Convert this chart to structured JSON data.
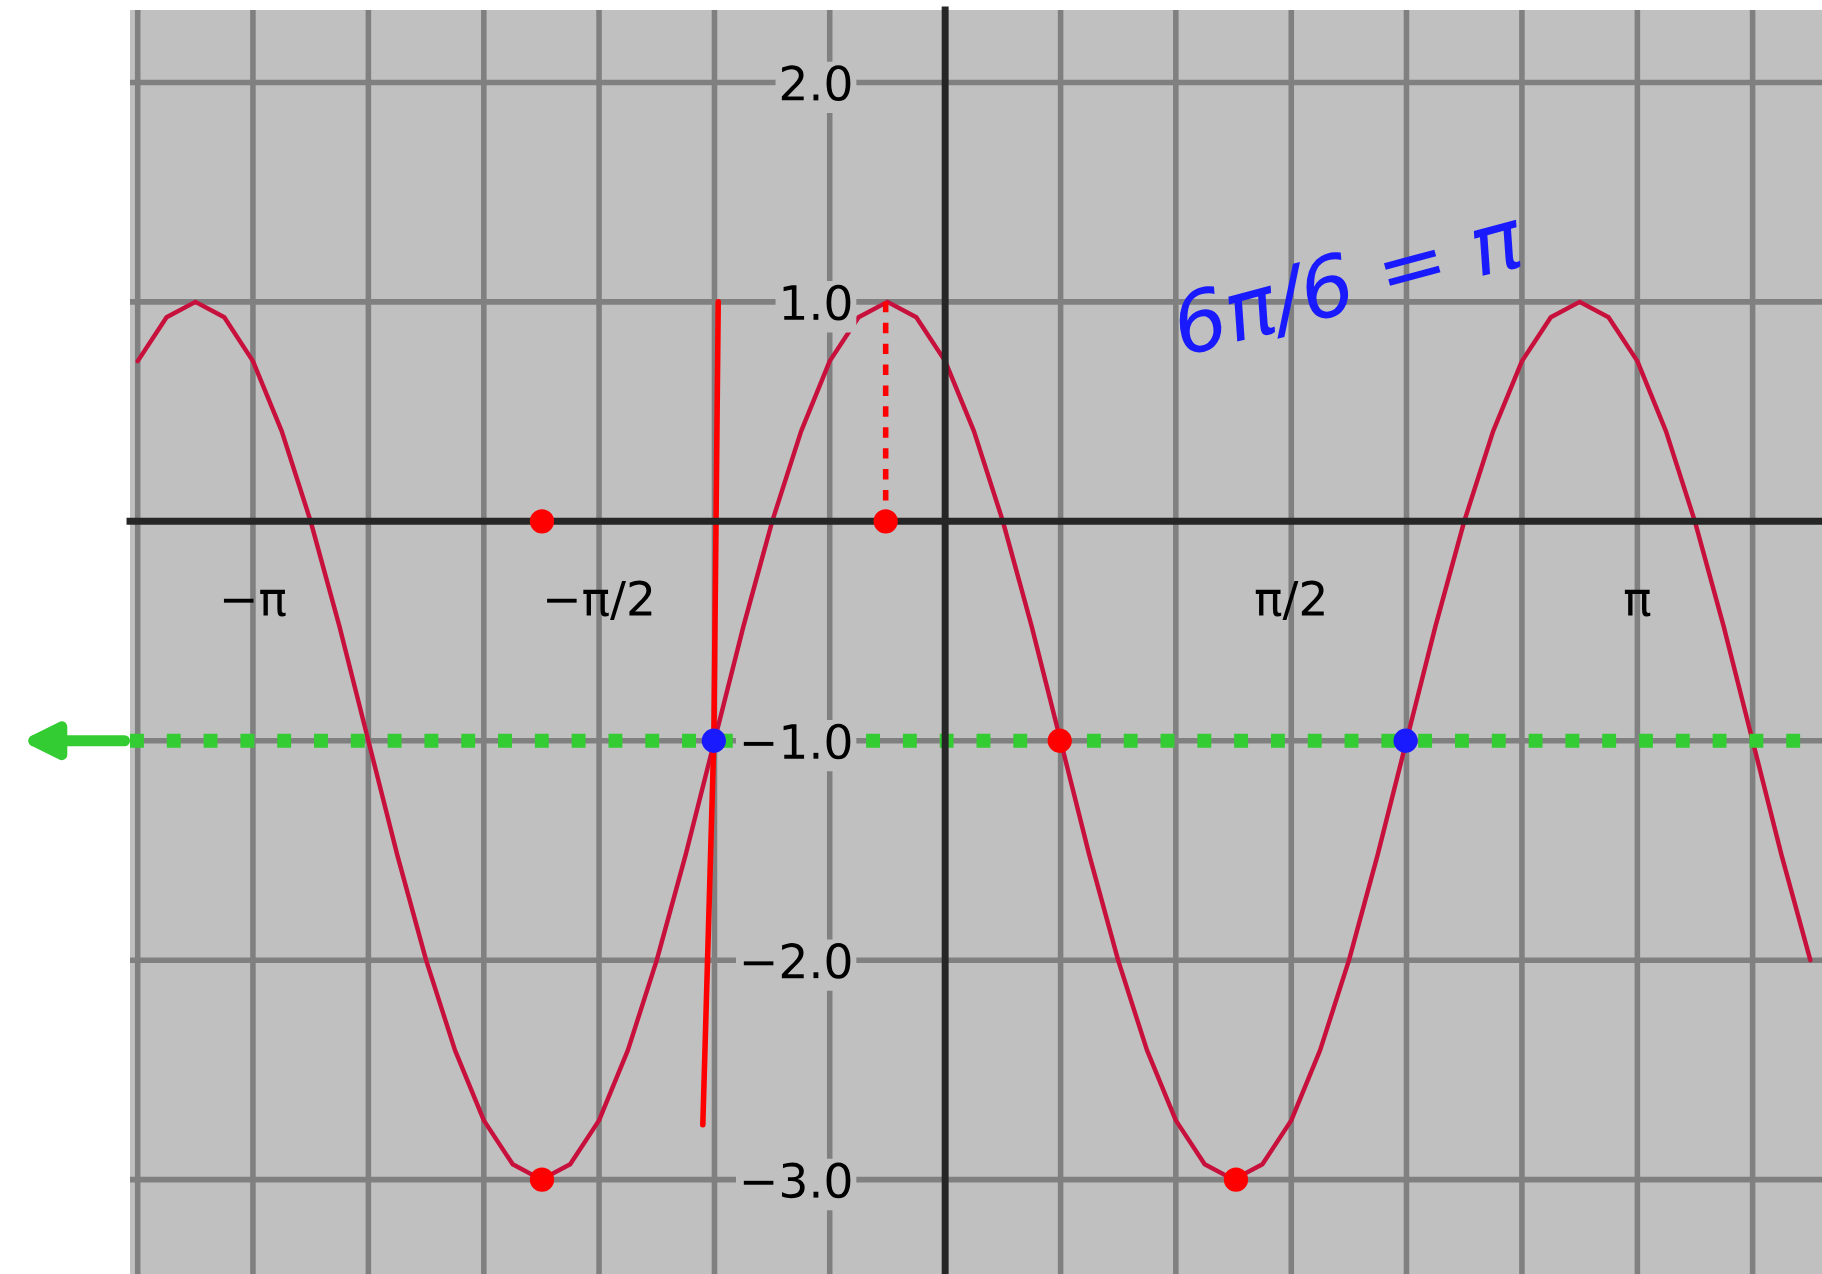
{
  "chart_data": {
    "type": "line",
    "xlim": [
      -3.7,
      3.98
    ],
    "ylim": [
      -3.43,
      2.33
    ],
    "xticks": [
      {
        "value": -3.665,
        "label": null
      },
      {
        "value": -3.142,
        "label": "−π"
      },
      {
        "value": -2.618,
        "label": null
      },
      {
        "value": -2.094,
        "label": null
      },
      {
        "value": -1.571,
        "label": "−π/2"
      },
      {
        "value": -1.047,
        "label": null
      },
      {
        "value": -0.524,
        "label": null
      },
      {
        "value": 0.524,
        "label": null
      },
      {
        "value": 1.047,
        "label": null
      },
      {
        "value": 1.571,
        "label": "π/2"
      },
      {
        "value": 2.094,
        "label": null
      },
      {
        "value": 2.618,
        "label": null
      },
      {
        "value": 3.142,
        "label": "π"
      },
      {
        "value": 3.665,
        "label": null
      }
    ],
    "yticks": [
      {
        "value": 2,
        "label": "2.0"
      },
      {
        "value": 1,
        "label": "1.0"
      },
      {
        "value": -1,
        "label": "−1.0"
      },
      {
        "value": -2,
        "label": "−2.0"
      },
      {
        "value": -3,
        "label": "−3.0"
      }
    ],
    "grid": true,
    "series": [
      {
        "color": "#c8103c",
        "x": [
          -3.665,
          -3.534,
          -3.403,
          -3.272,
          -3.142,
          -3.011,
          -2.88,
          -2.749,
          -2.618,
          -2.487,
          -2.356,
          -2.225,
          -2.094,
          -1.963,
          -1.833,
          -1.702,
          -1.571,
          -1.44,
          -1.309,
          -1.178,
          -1.047,
          -0.916,
          -0.785,
          -0.654,
          -0.524,
          -0.393,
          -0.262,
          -0.131,
          0,
          0.131,
          0.262,
          0.393,
          0.524,
          0.654,
          0.785,
          0.916,
          1.047,
          1.178,
          1.309,
          1.44,
          1.571,
          1.702,
          1.833,
          1.963,
          2.094,
          2.225,
          2.356,
          2.487,
          2.618,
          2.749,
          2.88,
          3.011,
          3.142,
          3.272,
          3.403,
          3.534,
          3.665,
          3.796,
          3.927
        ],
        "values": [
          0.73,
          0.93,
          1,
          0.93,
          0.73,
          0.41,
          0,
          -0.48,
          -1,
          -1.52,
          -2,
          -2.41,
          -2.73,
          -2.93,
          -3,
          -2.93,
          -2.73,
          -2.41,
          -2,
          -1.52,
          -1,
          -0.48,
          0,
          0.41,
          0.73,
          0.93,
          1,
          0.93,
          0.73,
          0.41,
          0,
          -0.48,
          -1,
          -1.52,
          -2,
          -2.41,
          -2.73,
          -2.93,
          -3,
          -2.93,
          -2.73,
          -2.41,
          -2,
          -1.52,
          -1,
          -0.48,
          0,
          0.41,
          0.73,
          0.93,
          1,
          0.93,
          0.73,
          0.41,
          0,
          -0.48,
          -1,
          -1.52,
          -2
        ]
      },
      {
        "type": "line",
        "color": "#ff0000",
        "x": [
          -1.03,
          -1.05,
          -1.1
        ],
        "values": [
          1.0,
          -1.0,
          -2.75
        ]
      },
      {
        "type": "line",
        "color": "#ff0000",
        "line_style": "dotted",
        "x": [
          -0.27,
          -0.27
        ],
        "values": [
          1.0,
          0
        ]
      },
      {
        "type": "scatter",
        "color": "#ff0000",
        "x": [
          -1.83,
          -0.27,
          0.52,
          -1.83,
          1.32
        ],
        "values": [
          0,
          0,
          -1,
          -3,
          -3
        ]
      },
      {
        "type": "scatter",
        "color": "#1a1aff",
        "x": [
          -1.05,
          2.09
        ],
        "values": [
          -1,
          -1
        ]
      }
    ],
    "ref_lines": [
      {
        "axis": "y",
        "value": -1,
        "color": "#33cc33",
        "line_style": "dotted"
      }
    ],
    "annotations": [
      "6π/6 = π"
    ]
  }
}
